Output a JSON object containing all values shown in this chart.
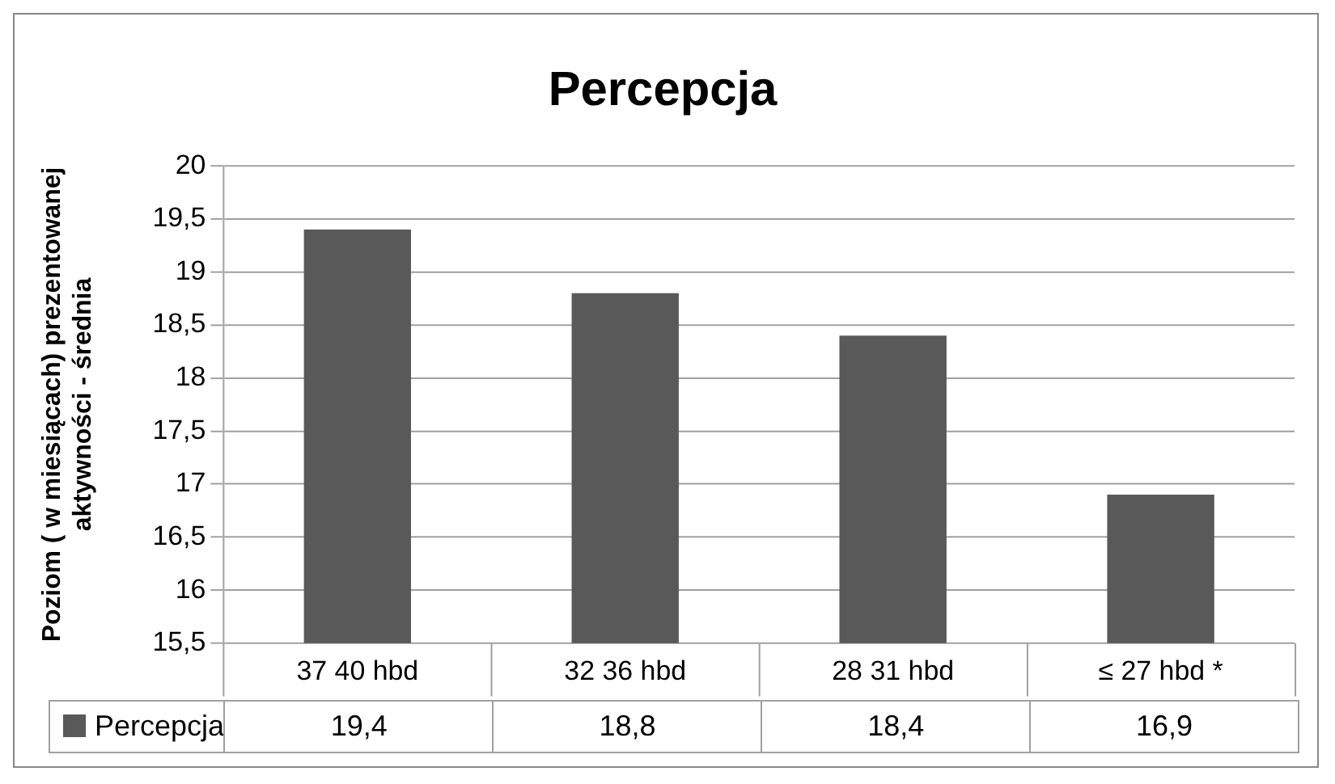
{
  "chart_data": {
    "type": "bar",
    "title": "Percepcja",
    "ylabel": "Poziom ( w miesiącach) prezentowanej aktywności - średnia",
    "categories": [
      "37 40 hbd",
      "32 36 hbd",
      "28 31 hbd",
      "≤ 27 hbd *"
    ],
    "series": [
      {
        "name": "Percepcja",
        "color": "#595959",
        "values": [
          19.4,
          18.8,
          18.4,
          16.9
        ],
        "value_labels": [
          "19,4",
          "18,8",
          "18,4",
          "16,9"
        ]
      }
    ],
    "ylim": [
      15.5,
      20
    ],
    "yticks": [
      {
        "value": 15.5,
        "label": "15,5"
      },
      16,
      {
        "value": 16.5,
        "label": "16,5"
      },
      17,
      {
        "value": 17.5,
        "label": "17,5"
      },
      18,
      {
        "value": 18.5,
        "label": "18,5"
      },
      19,
      {
        "value": 19.5,
        "label": "19,5"
      },
      20
    ],
    "grid": "y",
    "legend": "bottom"
  }
}
